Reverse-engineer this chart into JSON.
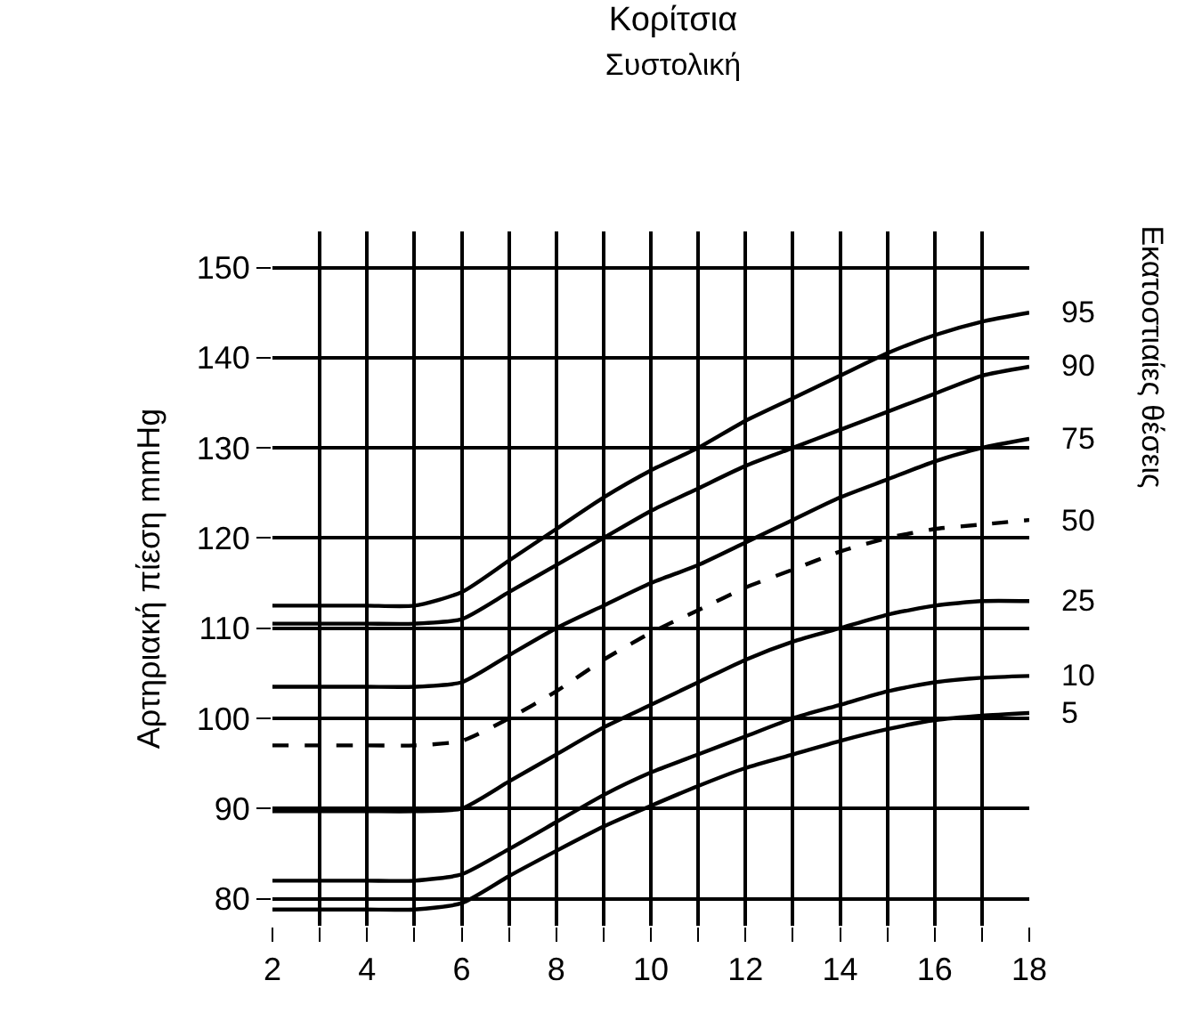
{
  "chart_data": {
    "type": "line",
    "title": "Κορίτσια",
    "subtitle": "Συστολική",
    "ylabel": "Αρτηριακή πίεση mmHg",
    "legend_title": "Εκατοστιαίες θέσεις",
    "x": [
      2,
      3,
      4,
      5,
      6,
      7,
      8,
      9,
      10,
      11,
      12,
      13,
      14,
      15,
      16,
      17,
      18
    ],
    "series": [
      {
        "name": "95",
        "color": "#000000",
        "line_style": "solid",
        "values": [
          112.5,
          112.5,
          112.5,
          112.5,
          114,
          117.5,
          121,
          124.5,
          127.5,
          130,
          133,
          135.5,
          138,
          140.5,
          142.5,
          144,
          145
        ]
      },
      {
        "name": "90",
        "color": "#000000",
        "line_style": "solid",
        "values": [
          110.5,
          110.5,
          110.5,
          110.5,
          111,
          114,
          117,
          120,
          123,
          125.5,
          128,
          130,
          132,
          134,
          136,
          138,
          139
        ]
      },
      {
        "name": "75",
        "color": "#000000",
        "line_style": "solid",
        "values": [
          103.5,
          103.5,
          103.5,
          103.5,
          104,
          107,
          110,
          112.5,
          115,
          117,
          119.5,
          122,
          124.5,
          126.5,
          128.5,
          130,
          131
        ]
      },
      {
        "name": "50",
        "color": "#000000",
        "line_style": "dashed",
        "values": [
          97,
          97,
          97,
          97,
          97.5,
          100,
          103,
          106.5,
          109.5,
          112,
          114.5,
          116.5,
          118.5,
          120,
          121,
          121.5,
          122
        ]
      },
      {
        "name": "25",
        "color": "#000000",
        "line_style": "solid",
        "values": [
          89.7,
          89.7,
          89.7,
          89.7,
          90,
          93,
          96,
          99,
          101.5,
          104,
          106.5,
          108.5,
          110,
          111.5,
          112.5,
          113,
          113
        ]
      },
      {
        "name": "10",
        "color": "#000000",
        "line_style": "solid",
        "values": [
          82,
          82,
          82,
          82,
          82.7,
          85.5,
          88.5,
          91.5,
          94,
          96,
          98,
          100,
          101.5,
          103,
          104,
          104.5,
          104.7
        ]
      },
      {
        "name": "5",
        "color": "#000000",
        "line_style": "solid",
        "values": [
          78.8,
          78.8,
          78.8,
          78.8,
          79.5,
          82.5,
          85.3,
          88,
          90.3,
          92.5,
          94.5,
          96,
          97.5,
          98.8,
          99.8,
          100.3,
          100.6
        ]
      }
    ],
    "xlim": [
      2,
      18
    ],
    "xticks": [
      2,
      {
        "value": 3,
        "label": null
      },
      4,
      {
        "value": 5,
        "label": null
      },
      6,
      {
        "value": 7,
        "label": null
      },
      8,
      {
        "value": 9,
        "label": null
      },
      10,
      {
        "value": 11,
        "label": null
      },
      12,
      {
        "value": 13,
        "label": null
      },
      14,
      {
        "value": 15,
        "label": null
      },
      16,
      {
        "value": 17,
        "label": null
      },
      18
    ],
    "ylim": [
      77,
      154
    ],
    "yticks": [
      80,
      90,
      100,
      110,
      120,
      130,
      140,
      150
    ],
    "grid": true,
    "legend": false,
    "marker": "none"
  }
}
